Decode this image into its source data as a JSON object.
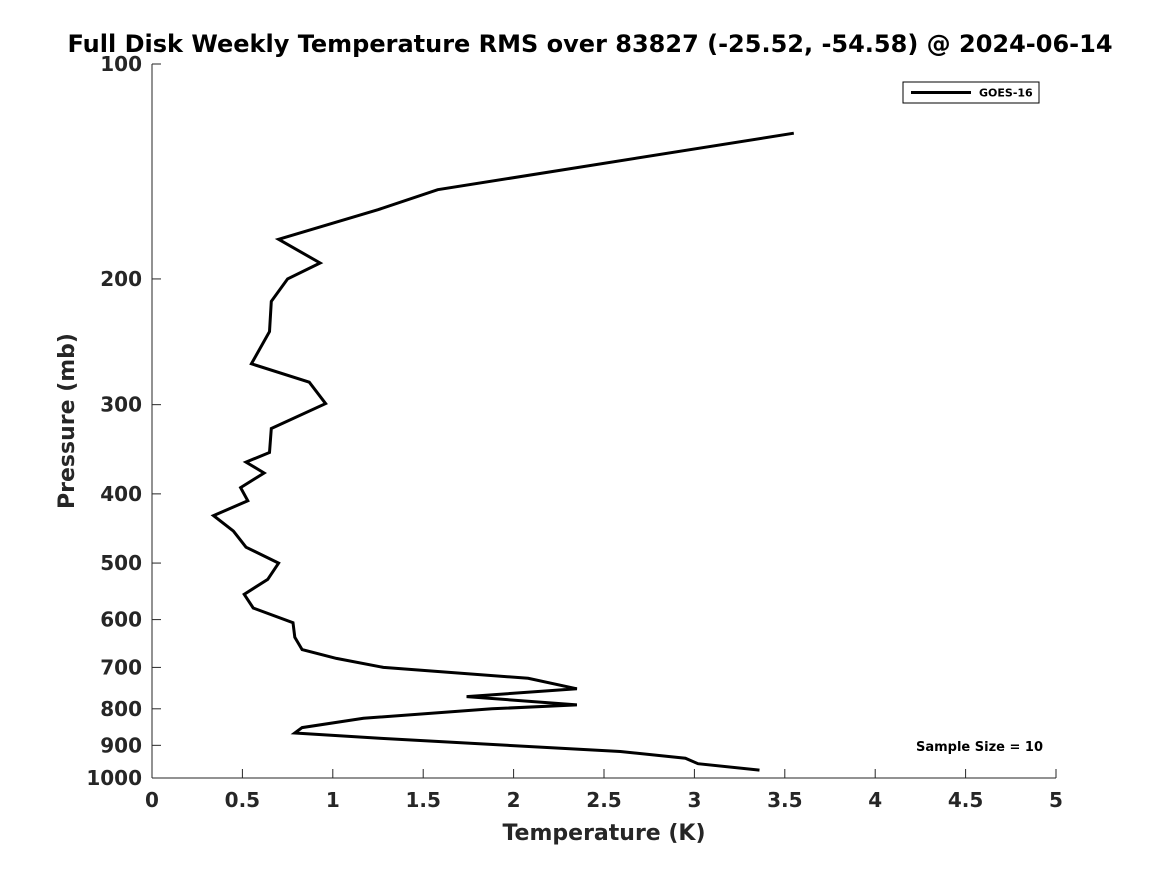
{
  "chart_data": {
    "type": "line",
    "title": "Full Disk Weekly Temperature RMS over 83827 (-25.52, -54.58) @ 2024-06-14",
    "xlabel": "Temperature (K)",
    "ylabel": "Pressure (mb)",
    "xlim": [
      0,
      5
    ],
    "ylim": [
      100,
      1000
    ],
    "y_scale": "log",
    "y_reversed": true,
    "x_ticks": [
      0,
      0.5,
      1,
      1.5,
      2,
      2.5,
      3,
      3.5,
      4,
      4.5,
      5
    ],
    "x_tick_labels": [
      "0",
      "0.5",
      "1",
      "1.5",
      "2",
      "2.5",
      "3",
      "3.5",
      "4",
      "4.5",
      "5"
    ],
    "y_ticks": [
      100,
      200,
      300,
      400,
      500,
      600,
      700,
      800,
      900,
      1000
    ],
    "y_tick_labels": [
      "100",
      "200",
      "300",
      "400",
      "500",
      "600",
      "700",
      "800",
      "900",
      "1000"
    ],
    "grid": false,
    "legend_position": "top-right",
    "annotation": "Sample Size = 10",
    "series": [
      {
        "name": "GOES-16",
        "color": "#000000",
        "points": [
          [
            3.55,
            125
          ],
          [
            1.58,
            150
          ],
          [
            1.25,
            160
          ],
          [
            0.7,
            176
          ],
          [
            0.93,
            190
          ],
          [
            0.75,
            200
          ],
          [
            0.66,
            215
          ],
          [
            0.65,
            237
          ],
          [
            0.55,
            263
          ],
          [
            0.87,
            279
          ],
          [
            0.96,
            299
          ],
          [
            0.66,
            324
          ],
          [
            0.65,
            350
          ],
          [
            0.52,
            361
          ],
          [
            0.62,
            374
          ],
          [
            0.49,
            392
          ],
          [
            0.53,
            409
          ],
          [
            0.34,
            429
          ],
          [
            0.45,
            451
          ],
          [
            0.52,
            475
          ],
          [
            0.7,
            500
          ],
          [
            0.64,
            527
          ],
          [
            0.51,
            553
          ],
          [
            0.56,
            578
          ],
          [
            0.78,
            606
          ],
          [
            0.79,
            635
          ],
          [
            0.83,
            661
          ],
          [
            1.02,
            680
          ],
          [
            1.28,
            700
          ],
          [
            2.08,
            725
          ],
          [
            2.35,
            750
          ],
          [
            1.74,
            769
          ],
          [
            2.35,
            790
          ],
          [
            1.88,
            800
          ],
          [
            1.17,
            825
          ],
          [
            0.83,
            850
          ],
          [
            0.79,
            865
          ],
          [
            1.27,
            880
          ],
          [
            2.59,
            918
          ],
          [
            2.95,
            938
          ],
          [
            3.02,
            955
          ],
          [
            3.36,
            975
          ]
        ]
      }
    ]
  }
}
